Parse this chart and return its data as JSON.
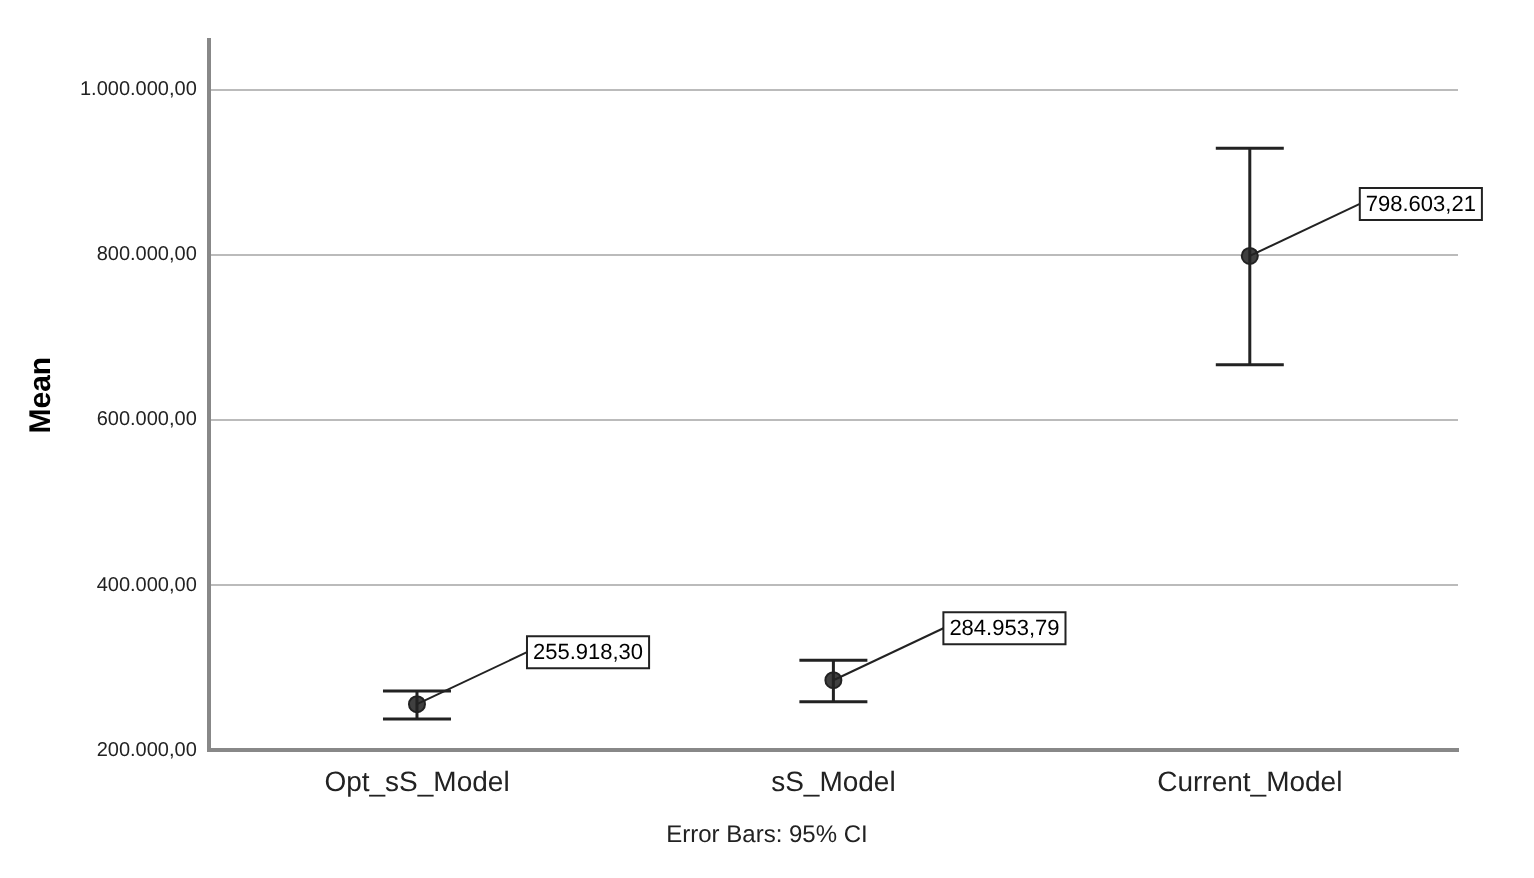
{
  "chart_data": {
    "type": "scatter",
    "ylabel": "Mean",
    "categories": [
      "Opt_sS_Model",
      "sS_Model",
      "Current_Model"
    ],
    "values": [
      255918.3,
      284953.79,
      798603.21
    ],
    "errors": [
      [
        238000,
        272000
      ],
      [
        259000,
        309000
      ],
      [
        667000,
        929000
      ]
    ],
    "value_labels": [
      "255.918,30",
      "284.953,79",
      "798.603,21"
    ],
    "color": "#404040",
    "marker": "circle",
    "grid": "y",
    "ylim": [
      200000,
      1060000
    ],
    "yticks": [
      {
        "value": 200000,
        "label": "200.000,00"
      },
      {
        "value": 400000,
        "label": "400.000,00"
      },
      {
        "value": 600000,
        "label": "600.000,00"
      },
      {
        "value": 800000,
        "label": "800.000,00"
      },
      {
        "value": 1000000,
        "label": "1.000.000,00"
      }
    ],
    "annotations": [
      "Error Bars: 95% CI"
    ]
  }
}
